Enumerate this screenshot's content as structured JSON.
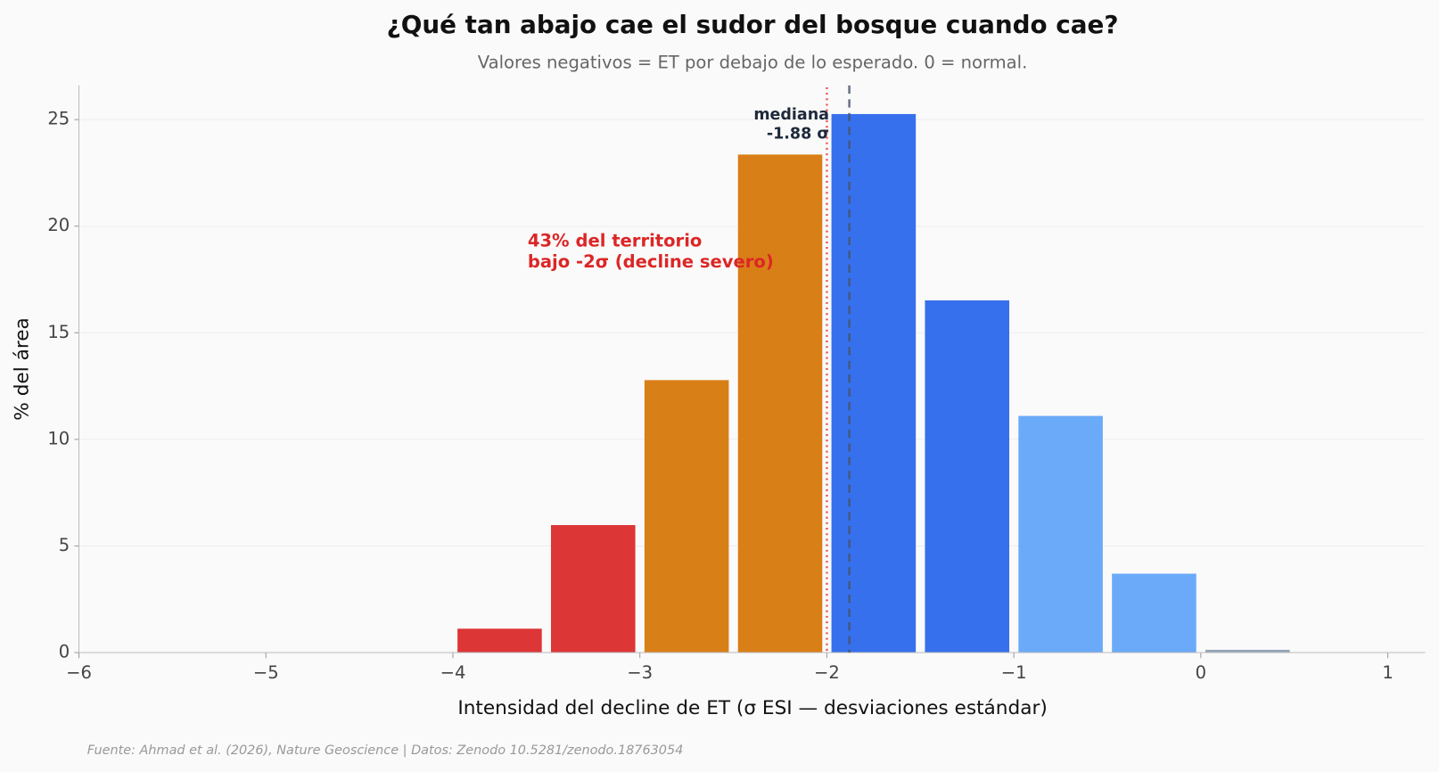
{
  "chart_data": {
    "type": "histogram",
    "title": "¿Qué tan abajo cae el sudor del bosque cuando cae?",
    "subtitle": "Valores negativos = ET por debajo de lo esperado. 0 = normal.",
    "x_label": "Intensidad del decline de ET (σ ESI — desviaciones estándar)",
    "y_label": "% del área",
    "source": "Fuente: Ahmad et al. (2026), Nature Geoscience | Datos: Zenodo 10.5281/zenodo.18763054",
    "bins": [
      -4,
      -3.5,
      -3,
      -2.5,
      -2,
      -1.5,
      -1,
      -0.5,
      0,
      0.5
    ],
    "values": [
      1.12,
      5.98,
      12.78,
      23.36,
      25.26,
      16.52,
      11.1,
      3.7,
      0.13
    ],
    "colors": [
      "#dc3636",
      "#dc3636",
      "#d97f17",
      "#d97f17",
      "#3670ec",
      "#3670ec",
      "#6aaaf9",
      "#6aaaf9",
      "#94a3b8"
    ],
    "xlim": [
      -6,
      1.2
    ],
    "ylim": [
      0,
      26.6
    ],
    "xticks": [
      {
        "value": -6,
        "label": "−6"
      },
      {
        "value": -5,
        "label": "−5"
      },
      {
        "value": -4,
        "label": "−4"
      },
      {
        "value": -3,
        "label": "−3"
      },
      {
        "value": -2,
        "label": "−2"
      },
      {
        "value": -1,
        "label": "−1"
      },
      0,
      1
    ],
    "yticks": [
      0,
      5,
      10,
      15,
      20,
      25
    ],
    "grid": true,
    "threshold": {
      "value": -2,
      "color": "#ef4444"
    },
    "median": {
      "value": -1.88,
      "color": "#475569",
      "lines": [
        "mediana",
        "-1.88 σ"
      ]
    },
    "annotation": {
      "lines": [
        "43% del territorio",
        "bajo -2σ (decline severo)"
      ],
      "color": "#dc2626"
    }
  }
}
